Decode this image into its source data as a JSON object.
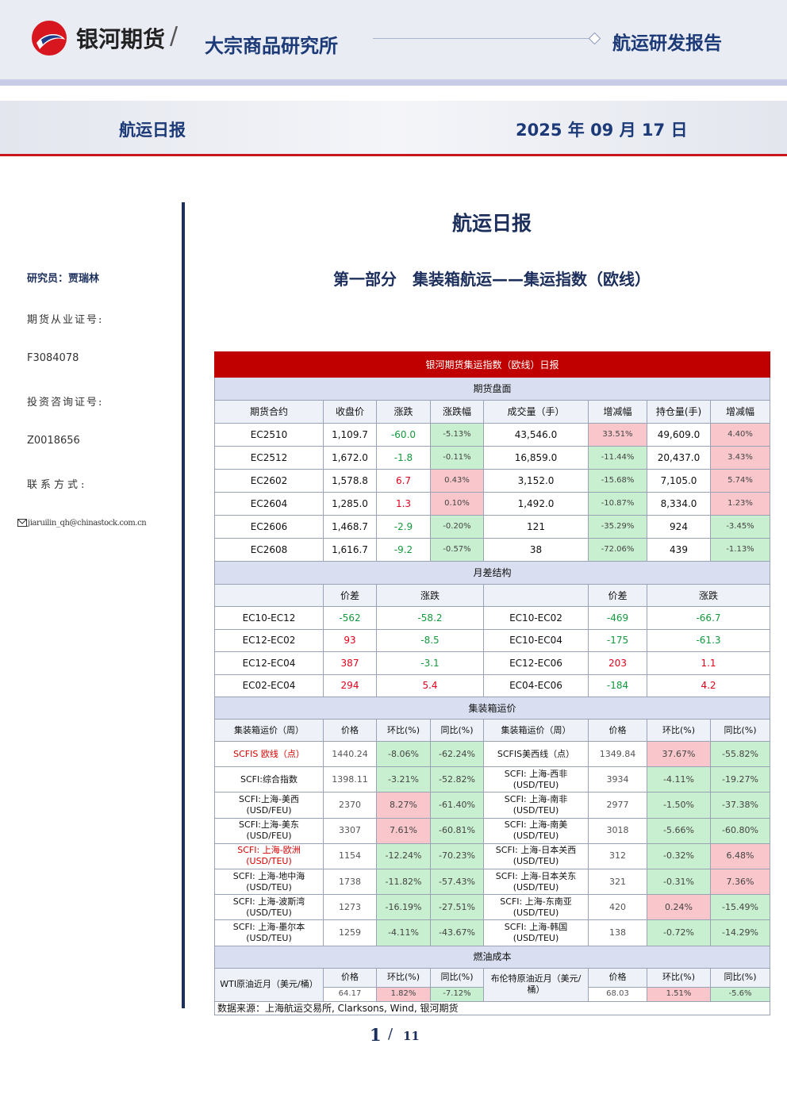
{
  "header": {
    "logo_text": "银河期货",
    "institute": "大宗商品研究所",
    "report_type": "航运研发报告"
  },
  "banner": {
    "title": "航运日报",
    "date": "2025 年 09 月 17 日"
  },
  "sidebar": {
    "researcher": "研究员：贾瑞林",
    "license_label": "期货从业证号:",
    "license": "F3084078",
    "consult_label": "投资咨询证号:",
    "consult": "Z0018656",
    "contact_label": "联系方式:",
    "email": "jiaruilin_qh@chinastock.com.cn"
  },
  "main": {
    "title": "航运日报",
    "section": "第一部分　集装箱航运——集运指数（欧线）"
  },
  "table": {
    "title": "银河期货集运指数（欧线）日报",
    "futures": {
      "title": "期货盘面",
      "headers": [
        "期货合约",
        "收盘价",
        "涨跌",
        "涨跌幅",
        "成交量（手）",
        "增减幅",
        "持仓量(手)",
        "增减幅"
      ],
      "rows": [
        [
          "EC2510",
          "1,109.7",
          "-60.0",
          "-5.13%",
          "43,546.0",
          "33.51%",
          "49,609.0",
          "4.40%"
        ],
        [
          "EC2512",
          "1,672.0",
          "-1.8",
          "-0.11%",
          "16,859.0",
          "-11.44%",
          "20,437.0",
          "3.43%"
        ],
        [
          "EC2602",
          "1,578.8",
          "6.7",
          "0.43%",
          "3,152.0",
          "-15.68%",
          "7,105.0",
          "5.74%"
        ],
        [
          "EC2604",
          "1,285.0",
          "1.3",
          "0.10%",
          "1,492.0",
          "-10.87%",
          "8,334.0",
          "1.23%"
        ],
        [
          "EC2606",
          "1,468.7",
          "-2.9",
          "-0.20%",
          "121",
          "-35.29%",
          "924",
          "-3.45%"
        ],
        [
          "EC2608",
          "1,616.7",
          "-9.2",
          "-0.57%",
          "38",
          "-72.06%",
          "439",
          "-1.13%"
        ]
      ]
    },
    "spreads": {
      "title": "月差结构",
      "headers": [
        "价差",
        "涨跌",
        "价差",
        "涨跌"
      ],
      "rows": [
        [
          "EC10-EC12",
          "-562",
          "-58.2",
          "EC10-EC02",
          "-469",
          "-66.7"
        ],
        [
          "EC12-EC02",
          "93",
          "-8.5",
          "EC10-EC04",
          "-175",
          "-61.3"
        ],
        [
          "EC12-EC04",
          "387",
          "-3.1",
          "EC12-EC06",
          "203",
          "1.1"
        ],
        [
          "EC02-EC04",
          "294",
          "5.4",
          "EC04-EC06",
          "-184",
          "4.2"
        ]
      ]
    },
    "freight": {
      "title": "集装箱运价",
      "headers": [
        "集装箱运价（周）",
        "价格",
        "环比(%)",
        "同比(%)",
        "集装箱运价（周）",
        "价格",
        "环比(%)",
        "同比(%)"
      ],
      "rows": [
        {
          "cells": [
            "SCFIS 欧线（点）",
            "1440.24",
            "-8.06%",
            "-62.24%",
            "SCFIS美西线（点）",
            "1349.84",
            "37.67%",
            "-55.82%"
          ],
          "highlight": true
        },
        {
          "cells": [
            "SCFI:综合指数",
            "1398.11",
            "-3.21%",
            "-52.82%",
            "SCFI: 上海-西非\n(USD/TEU)",
            "3934",
            "-4.11%",
            "-19.27%"
          ],
          "highlight": false
        },
        {
          "cells": [
            "SCFI:上海-美西\n(USD/FEU)",
            "2370",
            "8.27%",
            "-61.40%",
            "SCFI: 上海-南非\n(USD/TEU)",
            "2977",
            "-1.50%",
            "-37.38%"
          ],
          "highlight": false
        },
        {
          "cells": [
            "SCFI:上海-美东\n(USD/FEU)",
            "3307",
            "7.61%",
            "-60.81%",
            "SCFI: 上海-南美\n(USD/TEU)",
            "3018",
            "-5.66%",
            "-60.80%"
          ],
          "highlight": false
        },
        {
          "cells": [
            "SCFI: 上海-欧洲\n(USD/TEU)",
            "1154",
            "-12.24%",
            "-70.23%",
            "SCFI: 上海-日本关西\n(USD/TEU)",
            "312",
            "-0.32%",
            "6.48%"
          ],
          "highlight": true
        },
        {
          "cells": [
            "SCFI: 上海-地中海\n(USD/TEU)",
            "1738",
            "-11.82%",
            "-57.43%",
            "SCFI: 上海-日本关东\n(USD/TEU)",
            "321",
            "-0.31%",
            "7.36%"
          ],
          "highlight": false
        },
        {
          "cells": [
            "SCFI: 上海-波斯湾\n(USD/TEU)",
            "1273",
            "-16.19%",
            "-27.51%",
            "SCFI: 上海-东南亚\n(USD/TEU)",
            "420",
            "0.24%",
            "-15.49%"
          ],
          "highlight": false
        },
        {
          "cells": [
            "SCFI: 上海-墨尔本\n(USD/TEU)",
            "1259",
            "-4.11%",
            "-43.67%",
            "SCFI: 上海-韩国\n(USD/TEU)",
            "138",
            "-0.72%",
            "-14.29%"
          ],
          "highlight": false
        }
      ],
      "highlight_color": "#d40000"
    },
    "fuel": {
      "title": "燃油成本",
      "headers": [
        "WTI原油近月（美元/桶）",
        "价格",
        "环比(%)",
        "同比(%)",
        "布伦特原油近月（美元/\n桶）",
        "价格",
        "环比(%)",
        "同比(%)"
      ],
      "row": [
        "64.17",
        "1.82%",
        "-7.12%",
        "68.03",
        "1.51%",
        "-5.6%"
      ]
    },
    "source": "数据来源：上海航运交易所, Clarksons, Wind, 银河期货",
    "up_color": "#e0001a",
    "down_color": "#129a3c",
    "up_fill": "#f8c6cb",
    "down_fill": "#c8efcf"
  },
  "footer": {
    "page": "1",
    "separator": "/",
    "total": "11"
  }
}
